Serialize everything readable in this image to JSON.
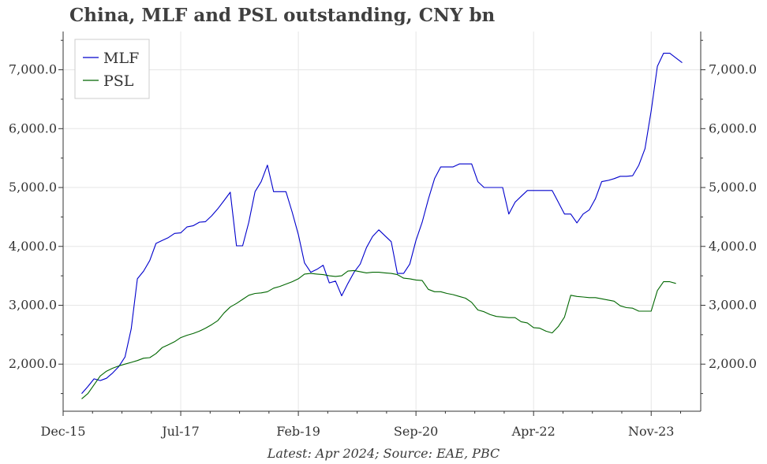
{
  "title": "China, MLF and PSL outstanding, CNY bn",
  "footer": "Latest: Apr 2024; Source: EAE, PBC",
  "chart_data": {
    "type": "line",
    "title": "China, MLF and PSL outstanding, CNY bn",
    "xlabel": "",
    "ylabel": "",
    "x_ticks": [
      "Dec-15",
      "Jul-17",
      "Feb-19",
      "Sep-20",
      "Apr-22",
      "Nov-23"
    ],
    "x_range": [
      "2015-12",
      "2024-07"
    ],
    "ylim": [
      1200,
      7650
    ],
    "y_ticks": [
      2000,
      3000,
      4000,
      5000,
      6000,
      7000
    ],
    "y_tick_labels": [
      "2,000.0",
      "3,000.0",
      "4,000.0",
      "5,000.0",
      "6,000.0",
      "7,000.0"
    ],
    "grid": true,
    "legend_position": "top-left",
    "series": [
      {
        "name": "MLF",
        "color": "#0000cc",
        "points": [
          [
            "2016-03",
            1500
          ],
          [
            "2016-04",
            1620
          ],
          [
            "2016-05",
            1750
          ],
          [
            "2016-06",
            1720
          ],
          [
            "2016-07",
            1760
          ],
          [
            "2016-08",
            1850
          ],
          [
            "2016-09",
            1960
          ],
          [
            "2016-10",
            2120
          ],
          [
            "2016-11",
            2600
          ],
          [
            "2016-12",
            3450
          ],
          [
            "2017-01",
            3580
          ],
          [
            "2017-02",
            3760
          ],
          [
            "2017-03",
            4050
          ],
          [
            "2017-04",
            4100
          ],
          [
            "2017-05",
            4150
          ],
          [
            "2017-06",
            4220
          ],
          [
            "2017-07",
            4230
          ],
          [
            "2017-08",
            4330
          ],
          [
            "2017-09",
            4350
          ],
          [
            "2017-10",
            4410
          ],
          [
            "2017-11",
            4420
          ],
          [
            "2017-12",
            4520
          ],
          [
            "2018-01",
            4640
          ],
          [
            "2018-02",
            4780
          ],
          [
            "2018-03",
            4920
          ],
          [
            "2018-04",
            4010
          ],
          [
            "2018-05",
            4010
          ],
          [
            "2018-06",
            4410
          ],
          [
            "2018-07",
            4930
          ],
          [
            "2018-08",
            5100
          ],
          [
            "2018-09",
            5380
          ],
          [
            "2018-10",
            4930
          ],
          [
            "2018-11",
            4930
          ],
          [
            "2018-12",
            4930
          ],
          [
            "2019-01",
            4580
          ],
          [
            "2019-02",
            4200
          ],
          [
            "2019-03",
            3720
          ],
          [
            "2019-04",
            3560
          ],
          [
            "2019-05",
            3610
          ],
          [
            "2019-06",
            3680
          ],
          [
            "2019-07",
            3380
          ],
          [
            "2019-08",
            3410
          ],
          [
            "2019-09",
            3160
          ],
          [
            "2019-10",
            3370
          ],
          [
            "2019-11",
            3560
          ],
          [
            "2019-12",
            3700
          ],
          [
            "2020-01",
            3980
          ],
          [
            "2020-02",
            4170
          ],
          [
            "2020-03",
            4280
          ],
          [
            "2020-04",
            4180
          ],
          [
            "2020-05",
            4080
          ],
          [
            "2020-06",
            3540
          ],
          [
            "2020-07",
            3540
          ],
          [
            "2020-08",
            3700
          ],
          [
            "2020-09",
            4100
          ],
          [
            "2020-10",
            4410
          ],
          [
            "2020-11",
            4800
          ],
          [
            "2020-12",
            5150
          ],
          [
            "2021-01",
            5350
          ],
          [
            "2021-02",
            5350
          ],
          [
            "2021-03",
            5350
          ],
          [
            "2021-04",
            5400
          ],
          [
            "2021-05",
            5400
          ],
          [
            "2021-06",
            5400
          ],
          [
            "2021-07",
            5100
          ],
          [
            "2021-08",
            5000
          ],
          [
            "2021-09",
            5000
          ],
          [
            "2021-10",
            5000
          ],
          [
            "2021-11",
            5000
          ],
          [
            "2021-12",
            4550
          ],
          [
            "2022-01",
            4750
          ],
          [
            "2022-02",
            4850
          ],
          [
            "2022-03",
            4950
          ],
          [
            "2022-04",
            4950
          ],
          [
            "2022-05",
            4950
          ],
          [
            "2022-06",
            4950
          ],
          [
            "2022-07",
            4950
          ],
          [
            "2022-08",
            4750
          ],
          [
            "2022-09",
            4550
          ],
          [
            "2022-10",
            4550
          ],
          [
            "2022-11",
            4400
          ],
          [
            "2022-12",
            4550
          ],
          [
            "2023-01",
            4620
          ],
          [
            "2023-02",
            4810
          ],
          [
            "2023-03",
            5100
          ],
          [
            "2023-04",
            5120
          ],
          [
            "2023-05",
            5150
          ],
          [
            "2023-06",
            5190
          ],
          [
            "2023-07",
            5190
          ],
          [
            "2023-08",
            5200
          ],
          [
            "2023-09",
            5380
          ],
          [
            "2023-10",
            5660
          ],
          [
            "2023-11",
            6300
          ],
          [
            "2023-12",
            7060
          ],
          [
            "2024-01",
            7280
          ],
          [
            "2024-02",
            7280
          ],
          [
            "2024-03",
            7200
          ],
          [
            "2024-04",
            7120
          ]
        ]
      },
      {
        "name": "PSL",
        "color": "#006600",
        "points": [
          [
            "2016-03",
            1410
          ],
          [
            "2016-04",
            1500
          ],
          [
            "2016-05",
            1650
          ],
          [
            "2016-06",
            1800
          ],
          [
            "2016-07",
            1880
          ],
          [
            "2016-08",
            1930
          ],
          [
            "2016-09",
            1970
          ],
          [
            "2016-10",
            2000
          ],
          [
            "2016-11",
            2030
          ],
          [
            "2016-12",
            2060
          ],
          [
            "2017-01",
            2100
          ],
          [
            "2017-02",
            2110
          ],
          [
            "2017-03",
            2180
          ],
          [
            "2017-04",
            2280
          ],
          [
            "2017-05",
            2330
          ],
          [
            "2017-06",
            2380
          ],
          [
            "2017-07",
            2450
          ],
          [
            "2017-08",
            2490
          ],
          [
            "2017-09",
            2520
          ],
          [
            "2017-10",
            2560
          ],
          [
            "2017-11",
            2610
          ],
          [
            "2017-12",
            2670
          ],
          [
            "2018-01",
            2740
          ],
          [
            "2018-02",
            2870
          ],
          [
            "2018-03",
            2970
          ],
          [
            "2018-04",
            3030
          ],
          [
            "2018-05",
            3100
          ],
          [
            "2018-06",
            3170
          ],
          [
            "2018-07",
            3200
          ],
          [
            "2018-08",
            3210
          ],
          [
            "2018-09",
            3230
          ],
          [
            "2018-10",
            3290
          ],
          [
            "2018-11",
            3320
          ],
          [
            "2018-12",
            3360
          ],
          [
            "2019-01",
            3400
          ],
          [
            "2019-02",
            3450
          ],
          [
            "2019-03",
            3530
          ],
          [
            "2019-04",
            3540
          ],
          [
            "2019-05",
            3530
          ],
          [
            "2019-06",
            3520
          ],
          [
            "2019-07",
            3500
          ],
          [
            "2019-08",
            3490
          ],
          [
            "2019-09",
            3500
          ],
          [
            "2019-10",
            3580
          ],
          [
            "2019-11",
            3590
          ],
          [
            "2019-12",
            3570
          ],
          [
            "2020-01",
            3550
          ],
          [
            "2020-02",
            3560
          ],
          [
            "2020-03",
            3560
          ],
          [
            "2020-04",
            3550
          ],
          [
            "2020-05",
            3540
          ],
          [
            "2020-06",
            3520
          ],
          [
            "2020-07",
            3460
          ],
          [
            "2020-08",
            3450
          ],
          [
            "2020-09",
            3430
          ],
          [
            "2020-10",
            3420
          ],
          [
            "2020-11",
            3270
          ],
          [
            "2020-12",
            3230
          ],
          [
            "2021-01",
            3230
          ],
          [
            "2021-02",
            3200
          ],
          [
            "2021-03",
            3180
          ],
          [
            "2021-04",
            3150
          ],
          [
            "2021-05",
            3120
          ],
          [
            "2021-06",
            3050
          ],
          [
            "2021-07",
            2920
          ],
          [
            "2021-08",
            2890
          ],
          [
            "2021-09",
            2840
          ],
          [
            "2021-10",
            2810
          ],
          [
            "2021-11",
            2800
          ],
          [
            "2021-12",
            2790
          ],
          [
            "2022-01",
            2790
          ],
          [
            "2022-02",
            2720
          ],
          [
            "2022-03",
            2700
          ],
          [
            "2022-04",
            2620
          ],
          [
            "2022-05",
            2610
          ],
          [
            "2022-06",
            2560
          ],
          [
            "2022-07",
            2530
          ],
          [
            "2022-08",
            2640
          ],
          [
            "2022-09",
            2800
          ],
          [
            "2022-10",
            3170
          ],
          [
            "2022-11",
            3150
          ],
          [
            "2022-12",
            3140
          ],
          [
            "2023-01",
            3130
          ],
          [
            "2023-02",
            3130
          ],
          [
            "2023-03",
            3110
          ],
          [
            "2023-04",
            3090
          ],
          [
            "2023-05",
            3070
          ],
          [
            "2023-06",
            2990
          ],
          [
            "2023-07",
            2960
          ],
          [
            "2023-08",
            2950
          ],
          [
            "2023-09",
            2900
          ],
          [
            "2023-10",
            2900
          ],
          [
            "2023-11",
            2900
          ],
          [
            "2023-12",
            3250
          ],
          [
            "2024-01",
            3400
          ],
          [
            "2024-02",
            3400
          ],
          [
            "2024-03",
            3370
          ]
        ]
      }
    ]
  }
}
